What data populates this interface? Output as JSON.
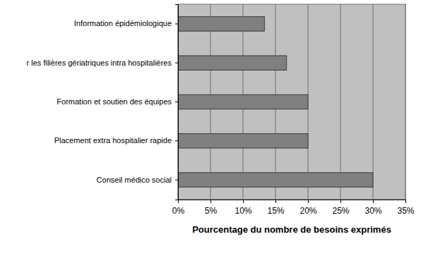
{
  "chart_data": {
    "type": "bar",
    "orientation": "horizontal",
    "categories": [
      "Information épidémiologique",
      "r les filières gériatriques intra hospitalières",
      "Formation et soutien des équipes",
      "Placement extra hospitalier rapide",
      "Conseil médico social"
    ],
    "values": [
      13.3,
      16.7,
      20,
      20,
      30
    ],
    "color": "#808080",
    "xlabel": "Pourcentage du nombre de besoins exprimés",
    "xlim": [
      0,
      35
    ],
    "xticks": [
      {
        "value": 0,
        "label": "0%"
      },
      {
        "value": 5,
        "label": "5%"
      },
      {
        "value": 10,
        "label": "10%"
      },
      {
        "value": 15,
        "label": "15%"
      },
      {
        "value": 20,
        "label": "20%"
      },
      {
        "value": 25,
        "label": "25%"
      },
      {
        "value": 30,
        "label": "30%"
      },
      {
        "value": 35,
        "label": "35%"
      }
    ],
    "grid": true
  }
}
